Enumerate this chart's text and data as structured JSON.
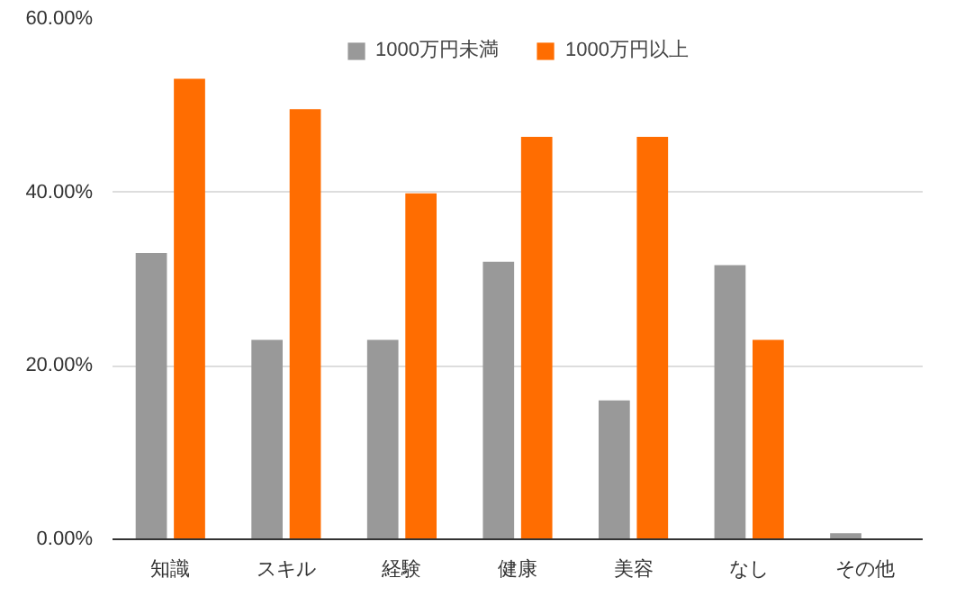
{
  "chart_data": {
    "type": "bar",
    "categories": [
      "知識",
      "スキル",
      "経験",
      "健康",
      "美容",
      "なし",
      "その他"
    ],
    "series": [
      {
        "name": "1000万円未満",
        "color": "#999999",
        "values": [
          33.0,
          23.0,
          23.0,
          32.0,
          16.0,
          31.6,
          0.7
        ]
      },
      {
        "name": "1000万円以上",
        "color": "#ff6d01",
        "values": [
          53.1,
          49.6,
          39.9,
          46.4,
          46.4,
          23.0,
          0
        ]
      }
    ],
    "ylim": [
      0,
      60
    ],
    "yticks": [
      {
        "value": 0,
        "label": "0.00%"
      },
      {
        "value": 20,
        "label": "20.00%"
      },
      {
        "value": 40,
        "label": "40.00%"
      },
      {
        "value": 60,
        "label": "60.00%"
      }
    ],
    "grid": "y",
    "legend": "top"
  }
}
